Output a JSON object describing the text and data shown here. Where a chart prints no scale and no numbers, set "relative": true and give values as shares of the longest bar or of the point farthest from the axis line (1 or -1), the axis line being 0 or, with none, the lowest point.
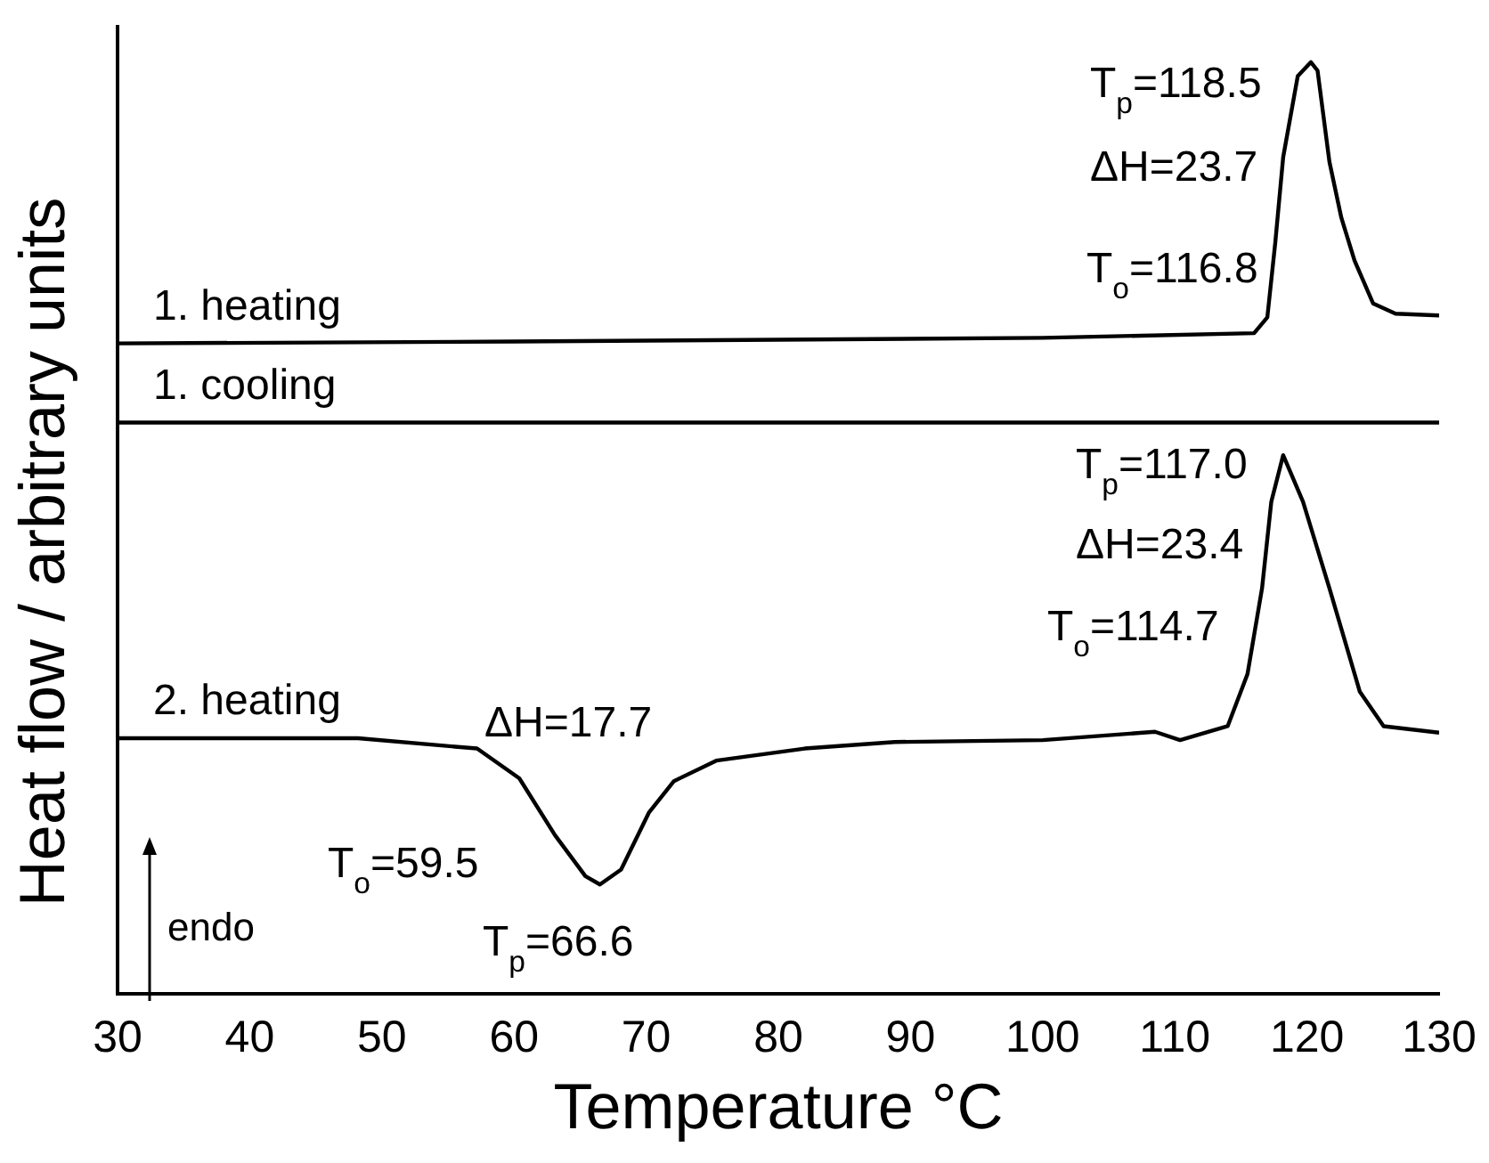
{
  "chart_data": {
    "type": "line",
    "xlabel": "Temperature °C",
    "ylabel": "Heat flow / arbitrary units",
    "relative": true,
    "xlim": [
      30,
      130
    ],
    "xticks": [
      30,
      40,
      50,
      60,
      70,
      80,
      90,
      100,
      110,
      120,
      130
    ],
    "grid": false,
    "legend": false,
    "marker": "none",
    "line_style": "solid",
    "series": [
      {
        "name": "1. heating",
        "color": "#000000",
        "x": [
          30,
          60,
          100,
          116,
          117,
          117.6,
          118.2,
          119.3,
          120.3,
          120.8,
          121.7,
          122.6,
          123.6,
          125,
          126.7,
          130
        ],
        "values": [
          0.698,
          0.7,
          0.704,
          0.709,
          0.726,
          0.806,
          0.898,
          0.985,
          1,
          0.991,
          0.893,
          0.833,
          0.787,
          0.741,
          0.73,
          0.728
        ]
      },
      {
        "name": "1. cooling",
        "color": "#000000",
        "x": [
          30,
          130
        ],
        "values": [
          0.613,
          0.613
        ]
      },
      {
        "name": "2. heating",
        "color": "#000000",
        "x": [
          30,
          48.2,
          57.2,
          60.4,
          63.1,
          65.4,
          66.5,
          68.1,
          70.2,
          72.1,
          75.3,
          82,
          88.8,
          100,
          108.5,
          110.4,
          114,
          115.5,
          116.6,
          117.3,
          118.2,
          119.7,
          121.7,
          124,
          125.8,
          130
        ],
        "values": [
          0.274,
          0.274,
          0.263,
          0.231,
          0.17,
          0.126,
          0.117,
          0.133,
          0.194,
          0.228,
          0.25,
          0.263,
          0.27,
          0.272,
          0.281,
          0.272,
          0.287,
          0.343,
          0.435,
          0.528,
          0.578,
          0.528,
          0.435,
          0.324,
          0.287,
          0.28
        ]
      }
    ],
    "annotations": [
      "T$_{p}$=118.5",
      "ΔH=23.7",
      "T$_{o}$=116.8",
      "T$_{p}$=117.0",
      "ΔH=23.4",
      "T$_{o}$=114.7",
      "ΔH=17.7",
      "T$_{o}$=59.5",
      "T$_{p}$=66.6",
      "endo"
    ]
  }
}
